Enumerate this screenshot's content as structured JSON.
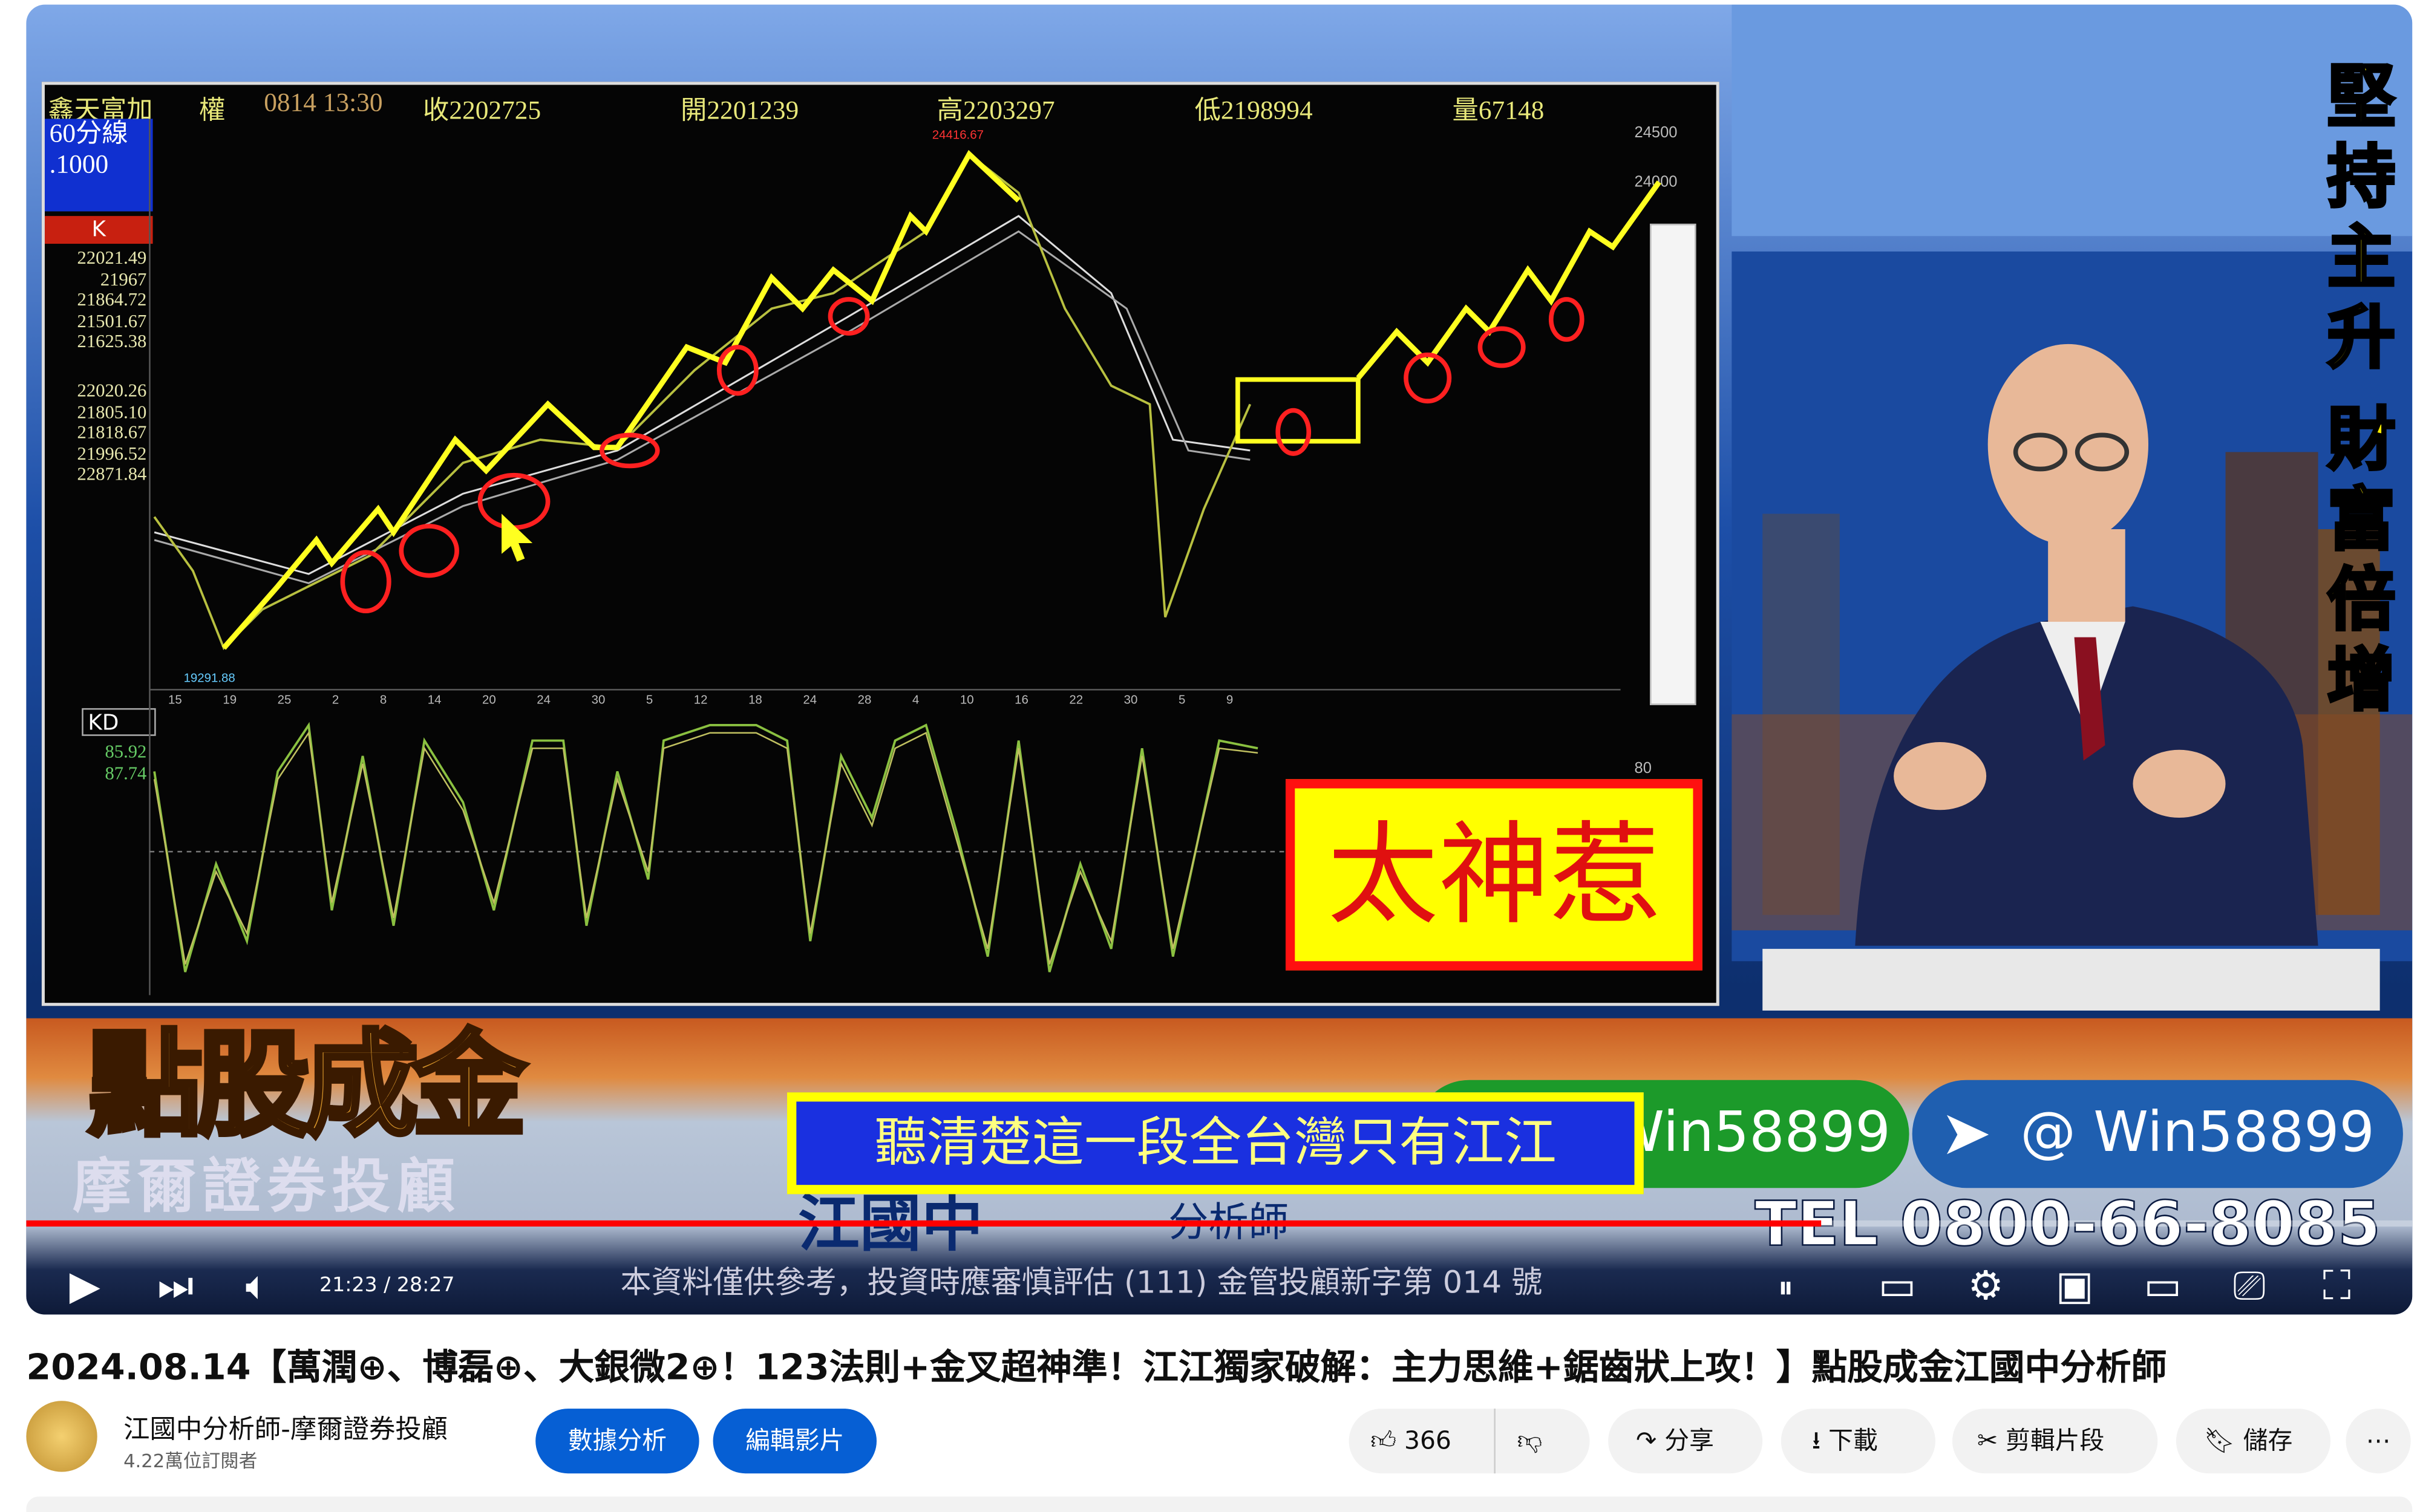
{
  "video": {
    "chart_header": {
      "symbol": "鑫天富加",
      "type": "權",
      "datetime": "0814 13:30",
      "close": "收2202725",
      "open": "開2201239",
      "high": "高2203297",
      "low": "低2198994",
      "volume": "量67148"
    },
    "timeframe": "60分線",
    "timeframe_sub": ".1000",
    "k_label": "K",
    "left_values_a": [
      "22021.49",
      "21967",
      "21864.72",
      "21501.67",
      "21625.38"
    ],
    "left_values_b": [
      "22020.26",
      "21805.10",
      "21818.67",
      "21996.52",
      "22871.84"
    ],
    "peak_label": "24416.67",
    "low_label": "19291.88",
    "y_axis": [
      "24500",
      "24000"
    ],
    "x_ticks": [
      "15",
      "19",
      "25",
      "2",
      "8",
      "14",
      "20",
      "24",
      "30",
      "5",
      "12",
      "18",
      "24",
      "28",
      "4",
      "10",
      "16",
      "22",
      "30",
      "5",
      "9"
    ],
    "kd_label": "KD",
    "kd_values": [
      "85.92",
      "87.74"
    ],
    "kd_axis": "80",
    "overlay_text": "太神惹",
    "slogan": "堅持主升 財富倍增",
    "banner": {
      "logo": "點股成金",
      "company": "摩爾證券投顧",
      "caption": "聽清楚這一段全台灣只有江江",
      "analyst_name": "江國中",
      "analyst_title": "分析師",
      "line_id": "Win58899",
      "telegram_id": "@ Win58899",
      "disclaimer": "本資料僅供參考，投資時應審慎評估 (111) 金管投顧新字第 014 號",
      "tel": "TEL 0800-66-8085"
    },
    "player": {
      "time": "21:23 / 28:27",
      "progress_fraction": 0.752,
      "icons": [
        "play-icon",
        "next-icon",
        "volume-icon",
        "pause-badge-icon",
        "subtitles-icon",
        "settings-icon",
        "miniplayer-icon",
        "theater-icon",
        "cast-icon",
        "fullscreen-icon"
      ]
    }
  },
  "title": "2024.08.14【萬潤⊕、博磊⊕、大銀微2⊕！123法則+金叉超神準！江江獨家破解：主力思維+鋸齒狀上攻！】點股成金江國中分析師",
  "channel": {
    "name": "江國中分析師-摩爾證券投顧",
    "subscribers": "4.22萬位訂閱者",
    "buttons": [
      "數據分析",
      "編輯影片"
    ]
  },
  "actions": {
    "likes": "366",
    "share": "分享",
    "download": "下載",
    "clip": "剪輯片段",
    "save": "儲存",
    "more": "⋯"
  },
  "colors": {
    "accent": "#065fd4",
    "progress": "#ff0000",
    "annotation_yellow": "#ffff00",
    "annotation_red": "#ff1010"
  }
}
